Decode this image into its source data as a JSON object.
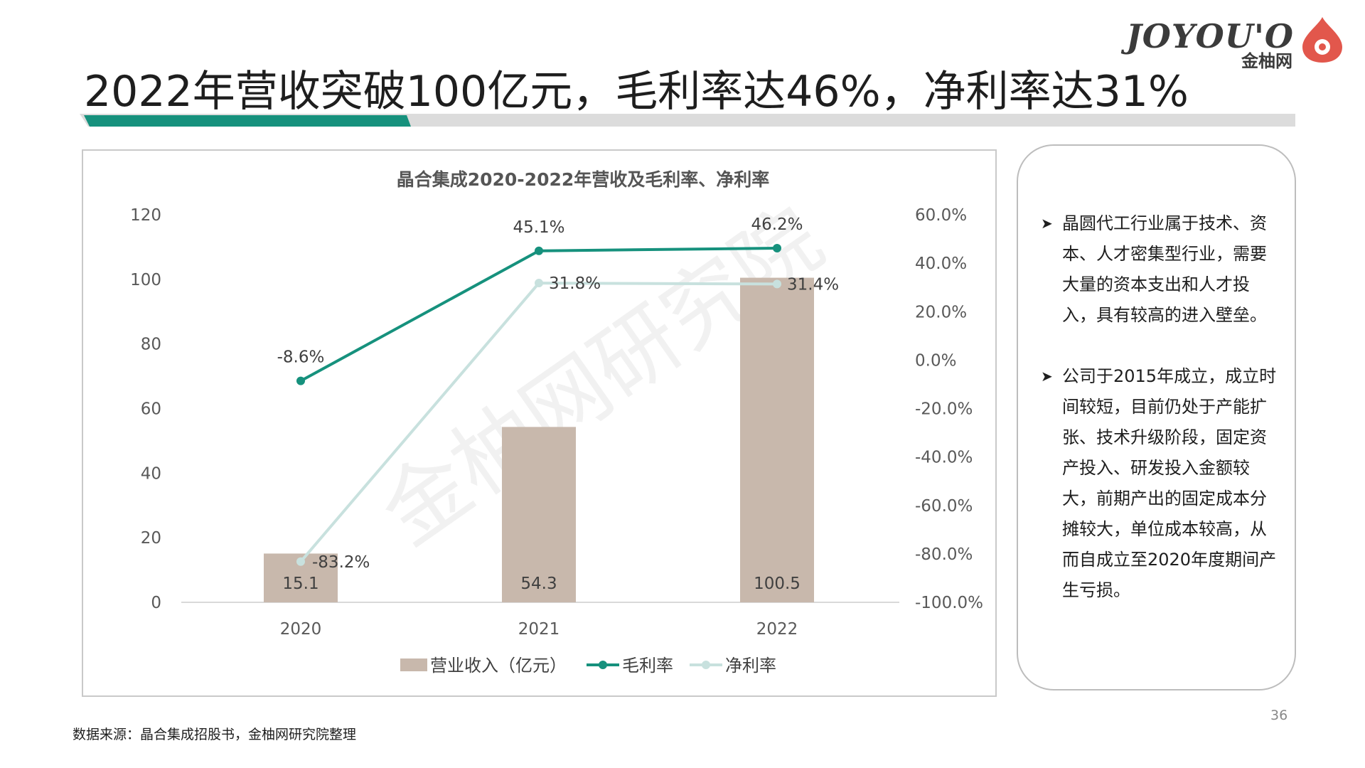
{
  "brand": {
    "wordmark": "JOYOU'O",
    "name": "金柚网",
    "accent_color": "#e2574c",
    "text_color": "#3b3b3b"
  },
  "title": "2022年营收突破100亿元，毛利率达46%，净利率达31%",
  "title_bar_colors": {
    "accent": "#16917d",
    "rest": "#dcdcdc"
  },
  "chart_data": {
    "type": "bar+line",
    "title": "晶合集成2020-2022年营收及毛利率、净利率",
    "categories": [
      "2020",
      "2021",
      "2022"
    ],
    "series": [
      {
        "name": "营业收入（亿元）",
        "type": "bar",
        "axis": "left",
        "values": [
          15.1,
          54.3,
          100.5
        ],
        "labels": [
          "15.1",
          "54.3",
          "100.5"
        ],
        "color": "#c8b8ac"
      },
      {
        "name": "毛利率",
        "type": "line",
        "axis": "right",
        "values": [
          -8.6,
          45.1,
          46.2
        ],
        "labels": [
          "-8.6%",
          "45.1%",
          "46.2%"
        ],
        "color": "#16917d"
      },
      {
        "name": "净利率",
        "type": "line",
        "axis": "right",
        "values": [
          -83.2,
          31.8,
          31.4
        ],
        "labels": [
          "-83.2%",
          "31.8%",
          "31.4%"
        ],
        "color": "#c8e1de"
      }
    ],
    "y_left": {
      "range": [
        0,
        120
      ],
      "ticks": [
        "0",
        "20",
        "40",
        "60",
        "80",
        "100",
        "120"
      ]
    },
    "y_right": {
      "range": [
        -100,
        60
      ],
      "ticks": [
        "-100.0%",
        "-80.0%",
        "-60.0%",
        "-40.0%",
        "-20.0%",
        "0.0%",
        "20.0%",
        "40.0%",
        "60.0%"
      ]
    },
    "legend_position": "bottom",
    "grid": false,
    "watermark": "金柚网研究院"
  },
  "notes": [
    "晶圆代工行业属于技术、资本、人才密集型行业，需要大量的资本支出和人才投入，具有较高的进入壁垒。",
    "公司于2015年成立，成立时间较短，目前仍处于产能扩张、技术升级阶段，固定资产投入、研发投入金额较大，前期产出的固定成本分摊较大，单位成本较高，从而自成立至2020年度期间产生亏损。"
  ],
  "source": "数据来源：晶合集成招股书，金柚网研究院整理",
  "page_number": "36"
}
